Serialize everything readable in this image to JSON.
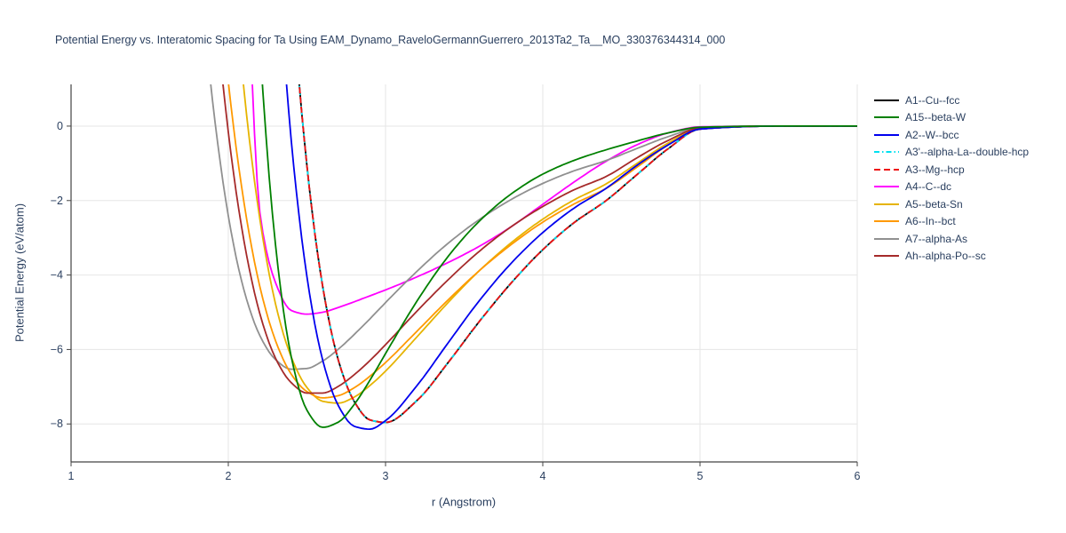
{
  "chart_data": {
    "type": "line",
    "title": "Potential Energy vs. Interatomic Spacing for Ta Using EAM_Dynamo_RaveloGermannGuerrero_2013Ta2_Ta__MO_330376344314_000",
    "xlabel": "r (Angstrom)",
    "ylabel": "Potential Energy (eV/atom)",
    "xlim": [
      1,
      6
    ],
    "ylim": [
      -9.02,
      1.12
    ],
    "grid": true,
    "legend_position": "right",
    "text_color": "#2a3f5f",
    "grid_color": "#e6e6e6",
    "axis_color": "#444444",
    "x_ticks": [
      1,
      2,
      3,
      4,
      5,
      6
    ],
    "x_tick_labels": [
      "1",
      "2",
      "3",
      "4",
      "5",
      "6"
    ],
    "y_ticks": [
      0,
      -2,
      -4,
      -6,
      -8
    ],
    "y_tick_labels": [
      "0",
      "−2",
      "−4",
      "−6",
      "−8"
    ],
    "x": [
      1.85,
      1.9,
      2.0,
      2.1,
      2.2,
      2.3,
      2.4,
      2.5,
      2.6,
      2.7,
      2.8,
      2.9,
      3.0,
      3.2,
      3.4,
      3.6,
      3.8,
      4.0,
      4.2,
      4.4,
      4.6,
      4.8,
      5.0,
      5.5,
      6.0
    ],
    "series": [
      {
        "name": "A1--Cu--fcc",
        "color": "#000000",
        "dash": "solid",
        "values": [
          12,
          12,
          12,
          12,
          12,
          11.3,
          3.91,
          -1.06,
          -4.3,
          -6.29,
          -7.39,
          -7.89,
          -7.96,
          -7.37,
          -6.34,
          -5.23,
          -4.21,
          -3.32,
          -2.59,
          -2.01,
          -1.3,
          -0.6,
          -0.08,
          0,
          0
        ]
      },
      {
        "name": "A15--beta-W",
        "color": "#008000",
        "dash": "solid",
        "values": [
          12,
          12,
          12,
          11.36,
          2.24,
          -3.18,
          -6.19,
          -7.63,
          -8.09,
          -7.95,
          -7.48,
          -6.83,
          -6.11,
          -4.7,
          -3.49,
          -2.54,
          -1.82,
          -1.29,
          -0.92,
          -0.64,
          -0.4,
          -0.18,
          -0.03,
          0,
          0
        ]
      },
      {
        "name": "A2--W--bcc",
        "color": "#0000ee",
        "dash": "solid",
        "values": [
          12,
          12,
          12,
          12,
          12,
          5.31,
          -0.37,
          -4.04,
          -6.28,
          -7.51,
          -8.06,
          -8.14,
          -7.91,
          -6.97,
          -5.81,
          -4.67,
          -3.68,
          -2.86,
          -2.2,
          -1.68,
          -1.05,
          -0.5,
          -0.08,
          0,
          0
        ]
      },
      {
        "name": "A3'--alpha-La--double-hcp",
        "color": "#00e0f0",
        "dash": "dashdot",
        "values": [
          12,
          12,
          12,
          12,
          12,
          11.3,
          3.91,
          -1.06,
          -4.3,
          -6.29,
          -7.39,
          -7.89,
          -7.96,
          -7.37,
          -6.34,
          -5.23,
          -4.21,
          -3.32,
          -2.59,
          -2.01,
          -1.3,
          -0.6,
          -0.08,
          0,
          0
        ]
      },
      {
        "name": "A3--Mg--hcp",
        "color": "#ee1111",
        "dash": "dash",
        "values": [
          12,
          12,
          12,
          12,
          12,
          11.3,
          3.91,
          -1.06,
          -4.3,
          -6.29,
          -7.39,
          -7.89,
          -7.96,
          -7.37,
          -6.34,
          -5.23,
          -4.21,
          -3.32,
          -2.59,
          -2.01,
          -1.3,
          -0.6,
          -0.08,
          0,
          0
        ]
      },
      {
        "name": "A4--C--dc",
        "color": "#ff00ff",
        "dash": "solid",
        "values": [
          12,
          12,
          12,
          6.0,
          -2.3,
          -4.2,
          -4.95,
          -5.05,
          -5.0,
          -4.87,
          -4.72,
          -4.56,
          -4.4,
          -4.05,
          -3.66,
          -3.22,
          -2.7,
          -2.1,
          -1.5,
          -0.95,
          -0.5,
          -0.18,
          -0.02,
          0,
          0
        ]
      },
      {
        "name": "A5--beta-Sn",
        "color": "#e6b400",
        "dash": "solid",
        "values": [
          12,
          12,
          5.96,
          0.96,
          -2.48,
          -4.77,
          -6.2,
          -7.02,
          -7.39,
          -7.44,
          -7.28,
          -6.97,
          -6.58,
          -5.66,
          -4.73,
          -3.87,
          -3.13,
          -2.5,
          -1.98,
          -1.56,
          -1.0,
          -0.45,
          -0.06,
          0,
          0
        ]
      },
      {
        "name": "A6--In--bct",
        "color": "#ff9900",
        "dash": "solid",
        "values": [
          8.71,
          5.78,
          1.19,
          -2.06,
          -4.3,
          -5.76,
          -6.66,
          -7.13,
          -7.3,
          -7.24,
          -7.03,
          -6.72,
          -6.35,
          -5.51,
          -4.66,
          -3.87,
          -3.18,
          -2.58,
          -2.09,
          -1.68,
          -1.1,
          -0.5,
          -0.07,
          0,
          0
        ]
      },
      {
        "name": "A7--alpha-As",
        "color": "#909090",
        "dash": "solid",
        "values": [
          2.76,
          0.67,
          -2.41,
          -4.41,
          -5.62,
          -6.27,
          -6.53,
          -6.51,
          -6.31,
          -5.99,
          -5.6,
          -5.18,
          -4.74,
          -3.9,
          -3.14,
          -2.5,
          -1.97,
          -1.54,
          -1.2,
          -0.93,
          -0.6,
          -0.28,
          -0.04,
          0,
          0
        ]
      },
      {
        "name": "Ah--alpha-Po--sc",
        "color": "#a52a2a",
        "dash": "solid",
        "values": [
          6.89,
          4.11,
          -0.16,
          -3.09,
          -5.03,
          -6.23,
          -6.89,
          -7.17,
          -7.17,
          -6.99,
          -6.68,
          -6.3,
          -5.87,
          -4.97,
          -4.12,
          -3.35,
          -2.7,
          -2.16,
          -1.71,
          -1.36,
          -0.85,
          -0.38,
          -0.05,
          0,
          0
        ]
      }
    ]
  }
}
